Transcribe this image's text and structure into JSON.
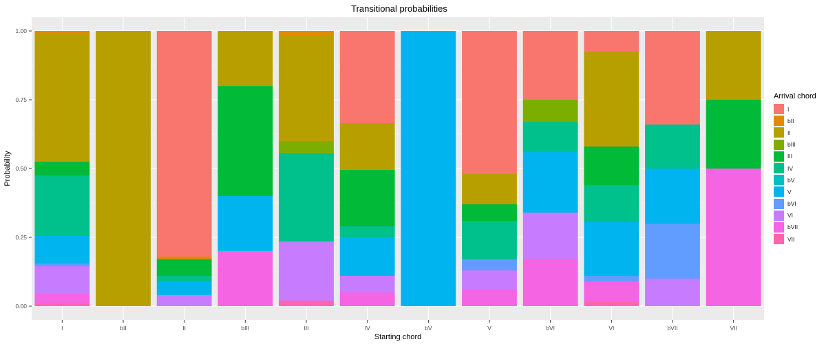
{
  "chart_data": {
    "type": "bar",
    "stacked": true,
    "title": "Transitional probabilities",
    "xlabel": "Starting chord",
    "ylabel": "Probability",
    "ylim": [
      0,
      1
    ],
    "yticks": [
      "0.00",
      "0.25",
      "0.50",
      "0.75",
      "1.00"
    ],
    "grid": true,
    "legend": {
      "title": "Arrival chord",
      "position": "right"
    },
    "categories": [
      "I",
      "bII",
      "II",
      "bIII",
      "III",
      "IV",
      "bV",
      "V",
      "bVI",
      "VI",
      "bVII",
      "VII"
    ],
    "series": [
      {
        "name": "I",
        "color": "#F8766D",
        "values": [
          0.0,
          0.0,
          0.82,
          0.0,
          0.0,
          0.335,
          0.0,
          0.52,
          0.25,
          0.075,
          0.34,
          0.0
        ]
      },
      {
        "name": "bII",
        "color": "#DE8C00",
        "values": [
          0.01,
          0.0,
          0.01,
          0.0,
          0.015,
          0.0,
          0.0,
          0.0,
          0.0,
          0.0,
          0.0,
          0.0
        ]
      },
      {
        "name": "II",
        "color": "#B79F00",
        "values": [
          0.465,
          1.0,
          0.0,
          0.2,
          0.385,
          0.17,
          0.0,
          0.11,
          0.0,
          0.345,
          0.0,
          0.25
        ]
      },
      {
        "name": "bIII",
        "color": "#7CAE00",
        "values": [
          0.0,
          0.0,
          0.0,
          0.0,
          0.045,
          0.0,
          0.0,
          0.0,
          0.08,
          0.0,
          0.0,
          0.0
        ]
      },
      {
        "name": "III",
        "color": "#00BA38",
        "values": [
          0.05,
          0.0,
          0.06,
          0.4,
          0.0,
          0.205,
          0.0,
          0.06,
          0.0,
          0.14,
          0.0,
          0.25
        ]
      },
      {
        "name": "IV",
        "color": "#00C08B",
        "values": [
          0.22,
          0.0,
          0.02,
          0.0,
          0.32,
          0.04,
          0.0,
          0.14,
          0.11,
          0.135,
          0.16,
          0.0
        ]
      },
      {
        "name": "bV",
        "color": "#00BFC4",
        "values": [
          0.0,
          0.0,
          0.0,
          0.0,
          0.0,
          0.0,
          0.0,
          0.0,
          0.0,
          0.0,
          0.0,
          0.0
        ]
      },
      {
        "name": "V",
        "color": "#00B4F0",
        "values": [
          0.1,
          0.0,
          0.05,
          0.2,
          0.0,
          0.14,
          1.0,
          0.0,
          0.22,
          0.195,
          0.2,
          0.0
        ]
      },
      {
        "name": "bVI",
        "color": "#619CFF",
        "values": [
          0.01,
          0.0,
          0.0,
          0.0,
          0.0,
          0.0,
          0.0,
          0.04,
          0.0,
          0.02,
          0.2,
          0.0
        ]
      },
      {
        "name": "VI",
        "color": "#C77CFF",
        "values": [
          0.1,
          0.0,
          0.04,
          0.0,
          0.215,
          0.06,
          0.0,
          0.07,
          0.17,
          0.0,
          0.1,
          0.0
        ]
      },
      {
        "name": "bVII",
        "color": "#F564E3",
        "values": [
          0.035,
          0.0,
          0.0,
          0.2,
          0.0,
          0.05,
          0.0,
          0.06,
          0.17,
          0.075,
          0.0,
          0.5
        ]
      },
      {
        "name": "VII",
        "color": "#FF64B0",
        "values": [
          0.01,
          0.0,
          0.0,
          0.0,
          0.02,
          0.0,
          0.0,
          0.0,
          0.0,
          0.015,
          0.0,
          0.0
        ]
      }
    ]
  }
}
